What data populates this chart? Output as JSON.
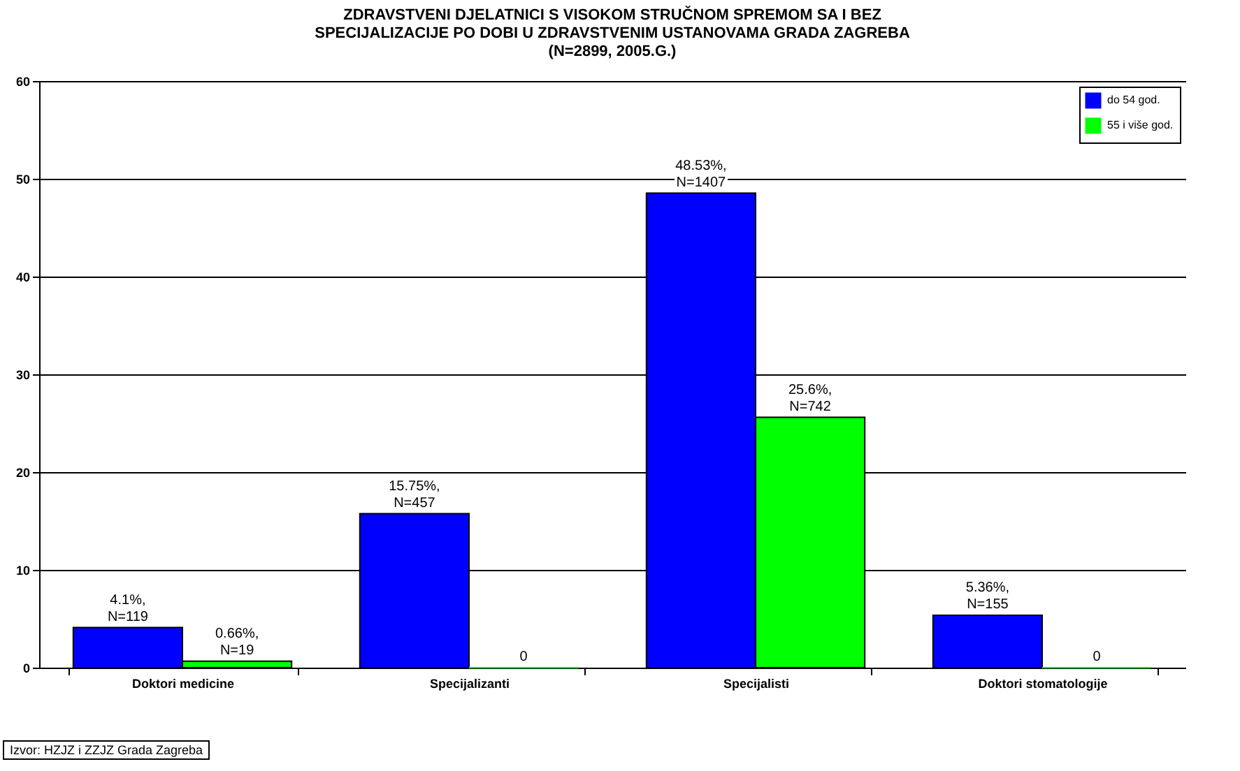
{
  "chart_data": {
    "type": "bar",
    "title": "ZDRAVSTVENI DJELATNICI S VISOKOM STRUČNOM SPREMOM SA I BEZ\nSPECIJALIZACIJE PO DOBI U ZDRAVSTVENIM USTANOVAMA GRADA ZAGREBA\n(N=2899, 2005.G.)",
    "categories": [
      "Doktori medicine",
      "Specijalizanti",
      "Specijalisti",
      "Doktori stomatologije"
    ],
    "series": [
      {
        "name": "do 54 god.",
        "color": "#0000ff",
        "values": [
          4.1,
          15.75,
          48.53,
          5.36
        ],
        "value_labels": [
          "4.1%,\nN=119",
          "15.75%,\nN=457",
          "48.53%,\nN=1407",
          "5.36%,\nN=155"
        ]
      },
      {
        "name": "55 i više god.",
        "color": "#00ff00",
        "values": [
          0.66,
          0,
          25.6,
          0
        ],
        "value_labels": [
          "0.66%,\nN=19",
          "0",
          "25.6%,\nN=742",
          "0"
        ]
      }
    ],
    "ylim": [
      0,
      60
    ],
    "yticks": [
      0,
      10,
      20,
      30,
      40,
      50,
      60
    ],
    "grid": "y",
    "legend": "top right",
    "annotations": [
      "Izvor: HZJZ i ZZJZ Grada Zagreba"
    ]
  }
}
